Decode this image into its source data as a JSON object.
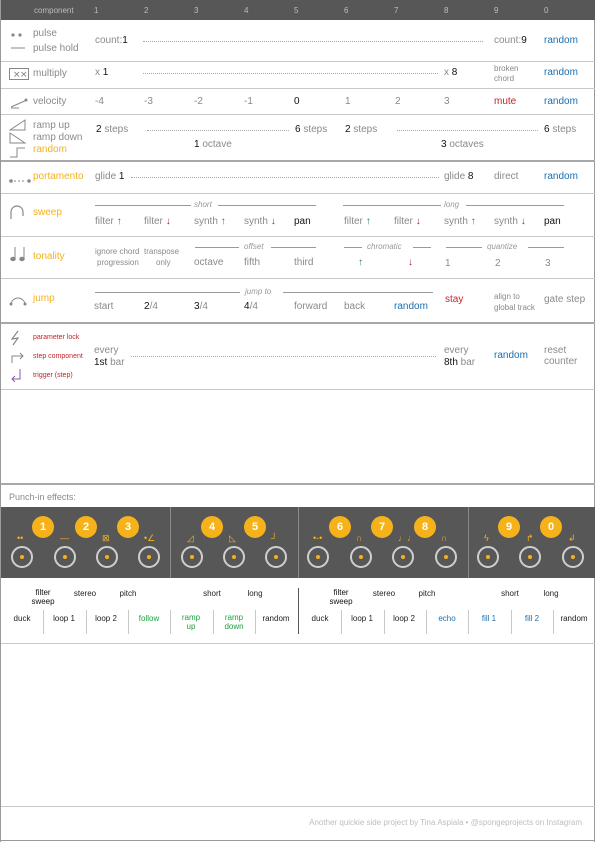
{
  "header": {
    "component": "component",
    "cols": [
      "1",
      "2",
      "3",
      "4",
      "5",
      "6",
      "7",
      "8",
      "9",
      "0"
    ]
  },
  "pulse": {
    "label1": "pulse",
    "label2": "pulse hold",
    "count_left_prefix": "count:",
    "count_left_val": "1",
    "count_right_prefix": "count:",
    "count_right_val": "9",
    "random": "random"
  },
  "multiply": {
    "label": "multiply",
    "left_prefix": "x ",
    "left_val": "1",
    "right_prefix": "x ",
    "right_val": "8",
    "broken1": "broken",
    "broken2": "chord",
    "random": "random"
  },
  "velocity": {
    "label": "velocity",
    "values": [
      "-4",
      "-3",
      "-2",
      "-1",
      "0",
      "1",
      "2",
      "3"
    ],
    "mute": "mute",
    "random": "random"
  },
  "ramp": {
    "label1": "ramp up",
    "label2": "ramp down",
    "label3": "random",
    "a_num": "2",
    "a_unit": " steps",
    "b_num": "6",
    "b_unit": " steps",
    "c_num": "2",
    "c_unit": " steps",
    "d_num": "6",
    "d_unit": " steps",
    "oct1_num": "1",
    "oct1_unit": " octave",
    "oct3_num": "3",
    "oct3_unit": " octaves"
  },
  "portamento": {
    "label": "portamento",
    "g1_prefix": "glide ",
    "g1_val": "1",
    "g8_prefix": "glide ",
    "g8_val": "8",
    "direct": "direct",
    "random": "random"
  },
  "sweep": {
    "label": "sweep",
    "short": "short",
    "long": "long",
    "items": [
      "filter",
      "filter",
      "synth",
      "synth",
      "pan",
      "filter",
      "filter",
      "synth",
      "synth",
      "pan"
    ]
  },
  "tonality": {
    "label": "tonality",
    "ignore1": "ignore chord",
    "ignore2": "progression",
    "transpose1": "transpose",
    "transpose2": "only",
    "offset": "offset",
    "octave": "octave",
    "fifth": "fifth",
    "third": "third",
    "chromatic": "chromatic",
    "quantize": "quantize",
    "q1": "1",
    "q2": "2",
    "q3": "3"
  },
  "jump": {
    "label": "jump",
    "jump_to": "jump to",
    "start": "start",
    "j2n": "2",
    "j2d": "/4",
    "j3n": "3",
    "j3d": "/4",
    "j4n": "4",
    "j4d": "/4",
    "forward": "forward",
    "back": "back",
    "random": "random",
    "stay": "stay",
    "align1": "align to",
    "align2": "global track",
    "gate": "gate step"
  },
  "legend": {
    "param": "parameter lock",
    "step": "step component",
    "trig": "trigger (step)",
    "every1": "every",
    "bar1_num": "1st",
    "bar1_unit": " bar",
    "every2": "every",
    "bar2_num": "8th",
    "bar2_unit": " bar",
    "random": "random",
    "reset1": "reset",
    "reset2": "counter"
  },
  "punch": {
    "title": "Punch-in effects:",
    "numbers": [
      "1",
      "2",
      "3",
      "4",
      "5",
      "6",
      "7",
      "8",
      "9",
      "0"
    ],
    "top_left": [
      "filter\nsweep",
      "stereo",
      "pitch",
      "short",
      "long"
    ],
    "top_right": [
      "filter\nsweep",
      "stereo",
      "pitch",
      "short",
      "long"
    ],
    "bottom_left": [
      "duck",
      "loop 1",
      "loop 2",
      "follow",
      "ramp\nup",
      "ramp\ndown",
      "random"
    ],
    "bottom_right": [
      "duck",
      "loop 1",
      "loop 2",
      "echo",
      "fill 1",
      "fill 2",
      "random"
    ]
  },
  "footer": {
    "credit": "Another quickie side project by Tina Aspiala • @spongeprojects on Instagram"
  }
}
